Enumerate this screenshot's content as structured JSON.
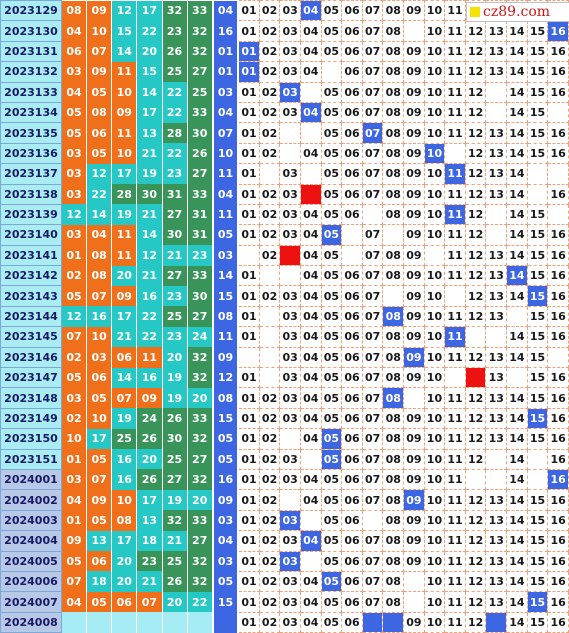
{
  "logo": {
    "text": "cz89.com",
    "icon": "yellow-square"
  },
  "colors": {
    "orange": "#f06f1a",
    "teal": "#25c8c5",
    "green": "#39945a",
    "blue": "#3d66e3",
    "red_hit": "#ee1111",
    "issue_old": "#a9edf2",
    "issue_new": "#b7c9e6"
  },
  "rows": [
    {
      "issue": "2023129",
      "reds": [
        "08",
        "09",
        "12",
        "17",
        "32",
        "33"
      ],
      "blue": "04",
      "grid": [
        "01",
        "02",
        "03",
        "04",
        "05",
        "06",
        "07",
        "08",
        "09",
        "10",
        "11",
        "",
        "",
        "",
        "",
        ""
      ],
      "hit": 4,
      "special": null
    },
    {
      "issue": "2023130",
      "reds": [
        "04",
        "10",
        "15",
        "22",
        "23",
        "32"
      ],
      "blue": "16",
      "grid": [
        "01",
        "02",
        "03",
        "04",
        "05",
        "06",
        "07",
        "08",
        "",
        "10",
        "11",
        "12",
        "13",
        "14",
        "15",
        "16"
      ],
      "hit": 16,
      "special": null
    },
    {
      "issue": "2023131",
      "reds": [
        "06",
        "07",
        "14",
        "20",
        "26",
        "32"
      ],
      "blue": "01",
      "grid": [
        "01",
        "02",
        "03",
        "04",
        "05",
        "06",
        "07",
        "08",
        "09",
        "10",
        "11",
        "12",
        "13",
        "14",
        "15",
        "16"
      ],
      "hit": 1,
      "special": null
    },
    {
      "issue": "2023132",
      "reds": [
        "03",
        "09",
        "11",
        "15",
        "25",
        "27"
      ],
      "blue": "01",
      "grid": [
        "01",
        "02",
        "03",
        "04",
        "",
        "06",
        "07",
        "08",
        "09",
        "10",
        "11",
        "12",
        "13",
        "14",
        "15",
        "16"
      ],
      "hit": 1,
      "special": null
    },
    {
      "issue": "2023133",
      "reds": [
        "04",
        "05",
        "10",
        "14",
        "22",
        "25"
      ],
      "blue": "03",
      "grid": [
        "01",
        "02",
        "03",
        "",
        "05",
        "06",
        "07",
        "08",
        "09",
        "10",
        "11",
        "12",
        "",
        "14",
        "15",
        "16"
      ],
      "hit": 3,
      "special": null
    },
    {
      "issue": "2023134",
      "reds": [
        "05",
        "08",
        "09",
        "17",
        "22",
        "33"
      ],
      "blue": "04",
      "grid": [
        "01",
        "02",
        "03",
        "04",
        "05",
        "06",
        "07",
        "08",
        "09",
        "10",
        "11",
        "12",
        "",
        "14",
        "15",
        ""
      ],
      "hit": 4,
      "special": null
    },
    {
      "issue": "2023135",
      "reds": [
        "05",
        "06",
        "11",
        "13",
        "28",
        "30"
      ],
      "blue": "07",
      "grid": [
        "01",
        "02",
        "",
        "",
        "05",
        "06",
        "07",
        "08",
        "09",
        "10",
        "11",
        "12",
        "13",
        "14",
        "15",
        "16"
      ],
      "hit": 7,
      "special": null
    },
    {
      "issue": "2023136",
      "reds": [
        "03",
        "05",
        "10",
        "21",
        "22",
        "26"
      ],
      "blue": "10",
      "grid": [
        "01",
        "02",
        "",
        "04",
        "05",
        "06",
        "07",
        "08",
        "09",
        "10",
        "",
        "12",
        "13",
        "14",
        "15",
        "16"
      ],
      "hit": 10,
      "special": null
    },
    {
      "issue": "2023137",
      "reds": [
        "03",
        "12",
        "17",
        "19",
        "23",
        "27"
      ],
      "blue": "11",
      "grid": [
        "01",
        "",
        "03",
        "",
        "05",
        "06",
        "07",
        "08",
        "09",
        "10",
        "11",
        "12",
        "13",
        "14",
        "",
        ""
      ],
      "hit": 11,
      "special": null
    },
    {
      "issue": "2023138",
      "reds": [
        "03",
        "22",
        "28",
        "30",
        "31",
        "33"
      ],
      "blue": "04",
      "grid": [
        "01",
        "02",
        "03",
        "",
        "05",
        "06",
        "07",
        "08",
        "09",
        "10",
        "11",
        "12",
        "13",
        "14",
        "",
        "16"
      ],
      "hit": 0,
      "special": 4
    },
    {
      "issue": "2023139",
      "reds": [
        "12",
        "14",
        "19",
        "21",
        "27",
        "31"
      ],
      "blue": "11",
      "grid": [
        "01",
        "02",
        "03",
        "04",
        "05",
        "06",
        "",
        "08",
        "09",
        "10",
        "11",
        "12",
        "",
        "14",
        "15",
        ""
      ],
      "hit": 11,
      "special": null
    },
    {
      "issue": "2023140",
      "reds": [
        "03",
        "04",
        "11",
        "14",
        "30",
        "31"
      ],
      "blue": "05",
      "grid": [
        "01",
        "02",
        "03",
        "04",
        "05",
        "",
        "07",
        "",
        "09",
        "10",
        "11",
        "12",
        "",
        "14",
        "15",
        "16"
      ],
      "hit": 5,
      "special": null
    },
    {
      "issue": "2023141",
      "reds": [
        "01",
        "08",
        "11",
        "12",
        "21",
        "23"
      ],
      "blue": "03",
      "grid": [
        "",
        "02",
        "",
        "04",
        "05",
        "",
        "07",
        "08",
        "09",
        "",
        "11",
        "12",
        "13",
        "14",
        "15",
        "16"
      ],
      "hit": 0,
      "special": 3
    },
    {
      "issue": "2023142",
      "reds": [
        "02",
        "08",
        "20",
        "21",
        "27",
        "33"
      ],
      "blue": "14",
      "grid": [
        "01",
        "",
        "",
        "04",
        "05",
        "06",
        "07",
        "08",
        "09",
        "10",
        "11",
        "12",
        "13",
        "14",
        "15",
        "16"
      ],
      "hit": 14,
      "special": null
    },
    {
      "issue": "2023143",
      "reds": [
        "05",
        "07",
        "09",
        "16",
        "23",
        "30"
      ],
      "blue": "15",
      "grid": [
        "01",
        "02",
        "03",
        "04",
        "05",
        "06",
        "07",
        "",
        "09",
        "10",
        "",
        "12",
        "13",
        "14",
        "15",
        "16"
      ],
      "hit": 15,
      "special": null
    },
    {
      "issue": "2023144",
      "reds": [
        "12",
        "16",
        "17",
        "22",
        "25",
        "27"
      ],
      "blue": "08",
      "grid": [
        "01",
        "",
        "03",
        "04",
        "05",
        "06",
        "07",
        "08",
        "09",
        "10",
        "11",
        "12",
        "13",
        "",
        "15",
        "16"
      ],
      "hit": 8,
      "special": null
    },
    {
      "issue": "2023145",
      "reds": [
        "07",
        "10",
        "21",
        "22",
        "23",
        "24"
      ],
      "blue": "11",
      "grid": [
        "01",
        "",
        "03",
        "04",
        "05",
        "06",
        "07",
        "08",
        "09",
        "10",
        "11",
        "",
        "",
        "14",
        "15",
        "16"
      ],
      "hit": 11,
      "special": null
    },
    {
      "issue": "2023146",
      "reds": [
        "02",
        "03",
        "06",
        "11",
        "20",
        "32"
      ],
      "blue": "09",
      "grid": [
        "",
        "",
        "03",
        "04",
        "05",
        "06",
        "07",
        "08",
        "09",
        "10",
        "11",
        "12",
        "13",
        "14",
        "15",
        ""
      ],
      "hit": 9,
      "special": null
    },
    {
      "issue": "2023147",
      "reds": [
        "05",
        "06",
        "14",
        "16",
        "19",
        "32"
      ],
      "blue": "12",
      "grid": [
        "01",
        "",
        "03",
        "04",
        "05",
        "06",
        "07",
        "08",
        "09",
        "10",
        "",
        "",
        "13",
        "",
        "15",
        "16"
      ],
      "hit": 0,
      "special": 12
    },
    {
      "issue": "2023148",
      "reds": [
        "03",
        "05",
        "07",
        "09",
        "19",
        "20"
      ],
      "blue": "08",
      "grid": [
        "01",
        "02",
        "03",
        "04",
        "05",
        "06",
        "07",
        "08",
        "",
        "10",
        "11",
        "12",
        "13",
        "14",
        "15",
        "16"
      ],
      "hit": 8,
      "special": null
    },
    {
      "issue": "2023149",
      "reds": [
        "02",
        "10",
        "19",
        "24",
        "26",
        "33"
      ],
      "blue": "15",
      "grid": [
        "01",
        "02",
        "03",
        "04",
        "05",
        "06",
        "07",
        "08",
        "09",
        "10",
        "11",
        "12",
        "13",
        "14",
        "15",
        "16"
      ],
      "hit": 15,
      "special": null
    },
    {
      "issue": "2023150",
      "reds": [
        "10",
        "17",
        "25",
        "26",
        "30",
        "32"
      ],
      "blue": "05",
      "grid": [
        "01",
        "02",
        "",
        "04",
        "05",
        "06",
        "07",
        "08",
        "09",
        "10",
        "11",
        "12",
        "13",
        "14",
        "15",
        "16"
      ],
      "hit": 5,
      "special": null
    },
    {
      "issue": "2023151",
      "reds": [
        "01",
        "05",
        "16",
        "20",
        "25",
        "27"
      ],
      "blue": "05",
      "grid": [
        "01",
        "02",
        "03",
        "",
        "05",
        "06",
        "07",
        "08",
        "09",
        "10",
        "11",
        "12",
        "",
        "14",
        "",
        "16"
      ],
      "hit": 5,
      "special": null
    },
    {
      "issue": "2024001",
      "reds": [
        "03",
        "07",
        "16",
        "26",
        "27",
        "32"
      ],
      "blue": "16",
      "grid": [
        "01",
        "02",
        "03",
        "04",
        "05",
        "06",
        "07",
        "08",
        "09",
        "10",
        "11",
        "",
        "",
        "14",
        "",
        "16"
      ],
      "hit": 16,
      "special": null
    },
    {
      "issue": "2024002",
      "reds": [
        "04",
        "09",
        "10",
        "17",
        "19",
        "20"
      ],
      "blue": "09",
      "grid": [
        "01",
        "02",
        "",
        "04",
        "05",
        "06",
        "07",
        "08",
        "09",
        "10",
        "11",
        "12",
        "13",
        "14",
        "15",
        "16"
      ],
      "hit": 9,
      "special": null
    },
    {
      "issue": "2024003",
      "reds": [
        "01",
        "05",
        "08",
        "13",
        "32",
        "33"
      ],
      "blue": "03",
      "grid": [
        "01",
        "02",
        "03",
        "",
        "05",
        "06",
        "",
        "08",
        "09",
        "10",
        "11",
        "12",
        "13",
        "14",
        "15",
        "16"
      ],
      "hit": 3,
      "special": null
    },
    {
      "issue": "2024004",
      "reds": [
        "09",
        "13",
        "17",
        "18",
        "21",
        "27"
      ],
      "blue": "04",
      "grid": [
        "01",
        "02",
        "03",
        "04",
        "05",
        "06",
        "07",
        "08",
        "09",
        "10",
        "11",
        "12",
        "13",
        "14",
        "15",
        "16"
      ],
      "hit": 4,
      "special": null
    },
    {
      "issue": "2024005",
      "reds": [
        "05",
        "06",
        "20",
        "23",
        "25",
        "32"
      ],
      "blue": "03",
      "grid": [
        "01",
        "02",
        "03",
        "",
        "05",
        "06",
        "07",
        "08",
        "09",
        "10",
        "11",
        "12",
        "13",
        "14",
        "15",
        "16"
      ],
      "hit": 3,
      "special": null
    },
    {
      "issue": "2024006",
      "reds": [
        "07",
        "18",
        "20",
        "21",
        "26",
        "32"
      ],
      "blue": "05",
      "grid": [
        "01",
        "02",
        "03",
        "04",
        "05",
        "06",
        "07",
        "08",
        "",
        "10",
        "11",
        "12",
        "13",
        "14",
        "15",
        "16"
      ],
      "hit": 5,
      "special": null
    },
    {
      "issue": "2024007",
      "reds": [
        "04",
        "05",
        "06",
        "07",
        "20",
        "22"
      ],
      "blue": "15",
      "grid": [
        "01",
        "02",
        "03",
        "04",
        "05",
        "06",
        "07",
        "08",
        "",
        "10",
        "11",
        "12",
        "13",
        "14",
        "15",
        "16"
      ],
      "hit": 15,
      "special": null
    },
    {
      "issue": "2024008",
      "reds": [
        "",
        "",
        "",
        "",
        "",
        ""
      ],
      "blue": "",
      "grid": [
        "01",
        "02",
        "03",
        "04",
        "05",
        "06",
        "",
        "",
        "09",
        "10",
        "11",
        "12",
        "",
        "14",
        "15",
        "16"
      ],
      "hit": 0,
      "special": null,
      "blanks": [
        7,
        8,
        13
      ]
    }
  ]
}
